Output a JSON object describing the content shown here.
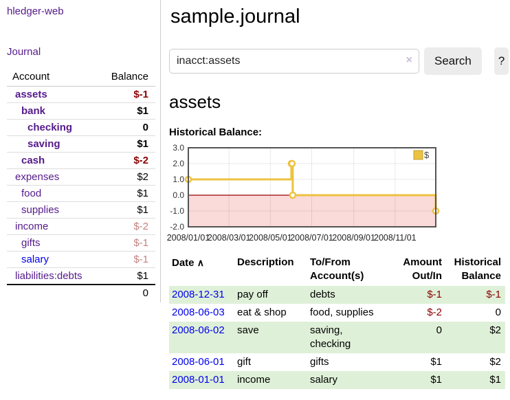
{
  "app": {
    "brand": "hledger-web"
  },
  "sidebar": {
    "journal_link": "Journal",
    "accounts_table": {
      "headers": [
        "Account",
        "Balance"
      ],
      "rows": [
        {
          "name": "assets",
          "balance": "$-1",
          "level": 1,
          "bold": true
        },
        {
          "name": "bank",
          "balance": "$1",
          "level": 2,
          "bold": true
        },
        {
          "name": "checking",
          "balance": "0",
          "level": 3,
          "bold": true
        },
        {
          "name": "saving",
          "balance": "$1",
          "level": 3,
          "bold": true
        },
        {
          "name": "cash",
          "balance": "$-2",
          "level": 2,
          "bold": true
        },
        {
          "name": "expenses",
          "balance": "$2",
          "level": 1,
          "bold": false
        },
        {
          "name": "food",
          "balance": "$1",
          "level": 2,
          "bold": false
        },
        {
          "name": "supplies",
          "balance": "$1",
          "level": 2,
          "bold": false
        },
        {
          "name": "income",
          "balance": "$-2",
          "level": 1,
          "bold": false
        },
        {
          "name": "gifts",
          "balance": "$-1",
          "level": 2,
          "bold": false
        },
        {
          "name": "salary",
          "balance": "$-1",
          "level": 2,
          "bold": false,
          "unvisited": true
        },
        {
          "name": "liabilities:debts",
          "balance": "$1",
          "level": 1,
          "bold": false
        }
      ],
      "total": "0"
    }
  },
  "header": {
    "title": "sample.journal"
  },
  "search": {
    "query": "inacct:assets",
    "clear_icon": "×",
    "search_button": "Search",
    "help_button": "?"
  },
  "account_page": {
    "heading": "assets",
    "chart_label": "Historical Balance:"
  },
  "chart_data": {
    "type": "line",
    "style": "step",
    "title": "Historical Balance:",
    "legend_position": "top-right",
    "series": [
      {
        "name": "$",
        "points": [
          [
            "2008-01-01",
            1
          ],
          [
            "2008-06-01",
            2
          ],
          [
            "2008-06-02",
            2
          ],
          [
            "2008-06-03",
            0
          ],
          [
            "2008-12-31",
            -1
          ]
        ]
      }
    ],
    "x_range": [
      "2008-01-01",
      "2008-12-31"
    ],
    "ylim": [
      -2,
      3
    ],
    "y_ticks": [
      {
        "v": 3,
        "label": "3.0"
      },
      {
        "v": 2,
        "label": "2.0"
      },
      {
        "v": 1,
        "label": "1.0"
      },
      {
        "v": 0,
        "label": "0.0"
      },
      {
        "v": -1,
        "label": "-1.0"
      },
      {
        "v": -2,
        "label": "-2.0"
      }
    ],
    "x_ticks": [
      {
        "t": "2008-01-01",
        "label": "2008/01/01"
      },
      {
        "t": "2008-03-01",
        "label": "2008/03/01"
      },
      {
        "t": "2008-05-01",
        "label": "2008/05/01"
      },
      {
        "t": "2008-07-01",
        "label": "2008/07/01"
      },
      {
        "t": "2008-09-01",
        "label": "2008/09/01"
      },
      {
        "t": "2008-11-01",
        "label": "2008/11/01"
      }
    ],
    "negative_region_below": 0,
    "grid": true
  },
  "register_table": {
    "headers": {
      "date": "Date",
      "sort_icon": "∧",
      "description": "Description",
      "accounts": "To/From Account(s)",
      "amount": "Amount Out/In",
      "balance": "Historical Balance"
    },
    "rows": [
      {
        "date": "2008-12-31",
        "description": "pay off",
        "accounts": "debts",
        "amount": "$-1",
        "balance": "$-1"
      },
      {
        "date": "2008-06-03",
        "description": "eat & shop",
        "accounts": "food, supplies",
        "amount": "$-2",
        "balance": "0"
      },
      {
        "date": "2008-06-02",
        "description": "save",
        "accounts": "saving, checking",
        "amount": "0",
        "balance": "$2"
      },
      {
        "date": "2008-06-01",
        "description": "gift",
        "accounts": "gifts",
        "amount": "$1",
        "balance": "$2"
      },
      {
        "date": "2008-01-01",
        "description": "income",
        "accounts": "salary",
        "amount": "$1",
        "balance": "$1"
      }
    ]
  },
  "colors": {
    "link_purple": "#551a8b",
    "link_blue": "#0000ee",
    "negative_dark": "#8b0000",
    "negative_light": "#c38282",
    "row_green": "#dff0d8",
    "series_yellow": "#edc240",
    "legend_box_border": "#c2a02f",
    "zero_line": "#990000",
    "negative_region": "#fbdada",
    "plot_border": "#545454",
    "gridline": "rgba(0,0,0,0.09)"
  }
}
